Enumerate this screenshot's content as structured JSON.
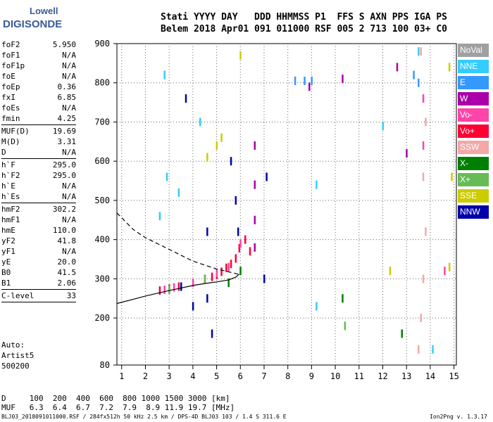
{
  "logo": {
    "top": "Lowell",
    "bottom": "DIGISONDE"
  },
  "header": {
    "line1": "Stati YYYY DAY   DDD HHMMSS P1  FFS S AXN PPS IGA PS",
    "line2": "Belem 2018 Apr01 091 011000 RSF 005 2 713 100 03+ C0"
  },
  "params": {
    "group1": [
      {
        "k": "foF2",
        "v": "5.950"
      },
      {
        "k": "foF1",
        "v": "N/A"
      },
      {
        "k": "foF1p",
        "v": "N/A"
      },
      {
        "k": "foE",
        "v": "N/A"
      },
      {
        "k": "foEp",
        "v": "0.36"
      },
      {
        "k": "fxI",
        "v": "6.85"
      },
      {
        "k": "foEs",
        "v": "N/A"
      },
      {
        "k": "fmin",
        "v": "4.25"
      }
    ],
    "group2": [
      {
        "k": "MUF(D)",
        "v": "19.69"
      },
      {
        "k": "M(D)",
        "v": "3.31"
      },
      {
        "k": "D",
        "v": "N/A"
      }
    ],
    "group3": [
      {
        "k": "h`F",
        "v": "295.0"
      },
      {
        "k": "h`F2",
        "v": "295.0"
      },
      {
        "k": "h`E",
        "v": "N/A"
      },
      {
        "k": "h`Es",
        "v": "N/A"
      }
    ],
    "group4": [
      {
        "k": "hmF2",
        "v": "302.2"
      },
      {
        "k": "hmF1",
        "v": "N/A"
      },
      {
        "k": "hmE",
        "v": "110.0"
      },
      {
        "k": "yF2",
        "v": "41.8"
      },
      {
        "k": "yF1",
        "v": "N/A"
      },
      {
        "k": "yE",
        "v": "20.0"
      },
      {
        "k": "B0",
        "v": "41.5"
      },
      {
        "k": "B1",
        "v": "2.06"
      }
    ],
    "group5": [
      {
        "k": "C-level",
        "v": "33"
      }
    ]
  },
  "auto": {
    "l1": "Auto:",
    "l2": "Artist5",
    "l3": "500200"
  },
  "dmuf": {
    "d_line": "D     100  200  400  600  800 1000 1500 3000 [km]",
    "muf_line": "MUF   6.3  6.4  6.7  7.2  7.9  8.9 11.9 19.7 [MHz]"
  },
  "footer": {
    "text": "BLJ03_2018091011000.RSF / 284fx512h 50 kHz 2.5 km / DPS-4D BLJ03 103 / 1.4 S 311.6 E",
    "version": "Ion2Png v. 1.3.17"
  },
  "legend": [
    {
      "label": "NoVal",
      "color": "#a0a0a0"
    },
    {
      "label": "NNE",
      "color": "#33ccff"
    },
    {
      "label": "E",
      "color": "#3399ff"
    },
    {
      "label": "W",
      "color": "#aa00aa"
    },
    {
      "label": "Vo-",
      "color": "#ff44aa"
    },
    {
      "label": "Vo+",
      "color": "#ff0033"
    },
    {
      "label": "SSW",
      "color": "#f4a7a7"
    },
    {
      "label": "X-",
      "color": "#008000"
    },
    {
      "label": "X+",
      "color": "#66bb55"
    },
    {
      "label": "SSE",
      "color": "#cccc00"
    },
    {
      "label": "NNW",
      "color": "#0000aa"
    }
  ],
  "chart_data": {
    "type": "scatter",
    "xlim": [
      0.8,
      15.1
    ],
    "ylim": [
      80,
      900
    ],
    "x_ticks": [
      1,
      2,
      3,
      4,
      5,
      6,
      7,
      8,
      9,
      10,
      11,
      12,
      13,
      14,
      15
    ],
    "y_ticks": [
      80,
      200,
      300,
      400,
      500,
      600,
      700,
      800,
      900
    ],
    "grid": "dotted",
    "series": [
      {
        "name": "Vo+",
        "color": "#ff0033",
        "points": [
          [
            4.5,
            300
          ],
          [
            4.8,
            305
          ],
          [
            5.0,
            310
          ],
          [
            5.2,
            318
          ],
          [
            5.4,
            328
          ],
          [
            5.6,
            338
          ],
          [
            5.8,
            352
          ],
          [
            5.95,
            378
          ],
          [
            6.2,
            400
          ],
          [
            6.4,
            370
          ],
          [
            3.0,
            275
          ],
          [
            3.4,
            280
          ],
          [
            2.6,
            270
          ]
        ]
      },
      {
        "name": "Vo-",
        "color": "#ff44aa",
        "points": [
          [
            2.8,
            272
          ],
          [
            3.2,
            278
          ],
          [
            4.0,
            290
          ],
          [
            5.0,
            315
          ],
          [
            5.5,
            330
          ],
          [
            6.0,
            390
          ],
          [
            13.7,
            640
          ],
          [
            13.7,
            760
          ],
          [
            14.6,
            320
          ]
        ]
      },
      {
        "name": "W",
        "color": "#aa00aa",
        "points": [
          [
            6.6,
            640
          ],
          [
            6.6,
            540
          ],
          [
            6.6,
            450
          ],
          [
            6.6,
            380
          ],
          [
            10.3,
            810
          ],
          [
            12.6,
            840
          ],
          [
            13.0,
            620
          ],
          [
            8.9,
            790
          ]
        ]
      },
      {
        "name": "NNE",
        "color": "#33ccff",
        "points": [
          [
            2.8,
            820
          ],
          [
            2.9,
            560
          ],
          [
            2.6,
            460
          ],
          [
            3.4,
            520
          ],
          [
            4.3,
            700
          ],
          [
            9.2,
            540
          ],
          [
            9.2,
            230
          ],
          [
            12.0,
            690
          ],
          [
            13.5,
            880
          ],
          [
            14.1,
            120
          ]
        ]
      },
      {
        "name": "E",
        "color": "#3399ff",
        "points": [
          [
            8.3,
            805
          ],
          [
            8.7,
            805
          ],
          [
            9.0,
            805
          ],
          [
            13.3,
            820
          ],
          [
            13.5,
            800
          ]
        ]
      },
      {
        "name": "SSW",
        "color": "#f4a7a7",
        "points": [
          [
            13.5,
            120
          ],
          [
            13.6,
            200
          ],
          [
            13.7,
            300
          ],
          [
            13.8,
            420
          ],
          [
            13.7,
            560
          ],
          [
            13.8,
            700
          ],
          [
            13.6,
            880
          ]
        ]
      },
      {
        "name": "X-",
        "color": "#008000",
        "points": [
          [
            5.5,
            290
          ],
          [
            6.0,
            320
          ],
          [
            10.3,
            250
          ],
          [
            12.8,
            160
          ]
        ]
      },
      {
        "name": "X+",
        "color": "#66bb55",
        "points": [
          [
            3.0,
            272
          ],
          [
            4.5,
            300
          ],
          [
            10.4,
            180
          ]
        ]
      },
      {
        "name": "SSE",
        "color": "#cccc00",
        "points": [
          [
            5.0,
            640
          ],
          [
            5.2,
            660
          ],
          [
            4.6,
            610
          ],
          [
            6.0,
            870
          ],
          [
            14.8,
            840
          ],
          [
            14.9,
            560
          ],
          [
            14.8,
            330
          ],
          [
            12.3,
            320
          ]
        ]
      },
      {
        "name": "NNW",
        "color": "#0000aa",
        "points": [
          [
            3.7,
            760
          ],
          [
            4.6,
            420
          ],
          [
            4.6,
            250
          ],
          [
            5.6,
            600
          ],
          [
            5.8,
            500
          ],
          [
            5.9,
            420
          ],
          [
            7.1,
            560
          ],
          [
            7.0,
            300
          ],
          [
            3.5,
            280
          ],
          [
            4.0,
            230
          ],
          [
            4.8,
            160
          ]
        ]
      }
    ],
    "profile_solid": [
      [
        0.8,
        237
      ],
      [
        1.5,
        248
      ],
      [
        2.0,
        256
      ],
      [
        3.0,
        270
      ],
      [
        4.0,
        283
      ],
      [
        4.5,
        288
      ],
      [
        5.0,
        292
      ],
      [
        5.5,
        297
      ],
      [
        5.8,
        304
      ],
      [
        5.95,
        312
      ]
    ],
    "profile_dashed": [
      [
        0.8,
        468
      ],
      [
        1.5,
        425
      ],
      [
        2.0,
        405
      ],
      [
        3.0,
        375
      ],
      [
        4.0,
        345
      ],
      [
        5.0,
        325
      ],
      [
        5.5,
        318
      ],
      [
        5.9,
        312
      ]
    ]
  }
}
